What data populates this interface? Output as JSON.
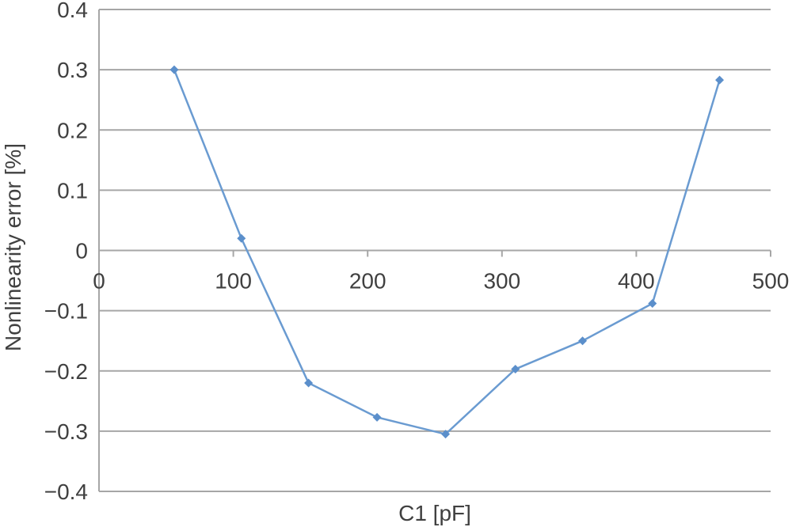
{
  "chart_data": {
    "type": "line",
    "title": "",
    "xlabel": "C1 [pF]",
    "ylabel": "Nonlinearity error [%]",
    "xlim": [
      0,
      500
    ],
    "ylim": [
      -0.4,
      0.4
    ],
    "x_ticks": [
      "0",
      "100",
      "200",
      "300",
      "400",
      "500"
    ],
    "y_ticks": [
      "0.4",
      "0.3",
      "0.2",
      "0.1",
      "0",
      "−0.1",
      "−0.2",
      "−0.3",
      "−0.4"
    ],
    "grid": "horizontal",
    "legend": "none",
    "series": [
      {
        "color": "#6a9bd1",
        "marker": "diamond",
        "x": [
          56,
          106,
          156,
          207,
          258,
          310,
          360,
          412,
          462
        ],
        "y": [
          0.3,
          0.02,
          -0.22,
          -0.277,
          -0.305,
          -0.197,
          -0.15,
          -0.088,
          0.283
        ]
      }
    ]
  }
}
